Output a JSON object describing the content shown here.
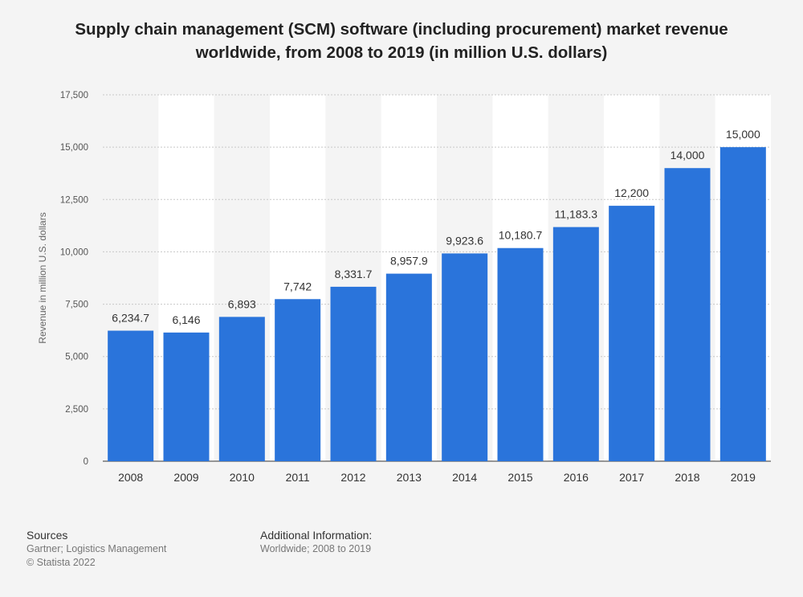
{
  "title": "Supply chain management (SCM) software (including procurement) market revenue worldwide, from 2008 to 2019 (in million U.S. dollars)",
  "footer": {
    "sources_heading": "Sources",
    "sources_text": "Gartner; Logistics Management",
    "copyright": "© Statista 2022",
    "additional_heading": "Additional Information:",
    "additional_text": "Worldwide; 2008 to 2019"
  },
  "colors": {
    "bar": "#2a74db",
    "background": "#f4f4f4",
    "stripe": "#ffffff",
    "grid": "#c8c8c8"
  },
  "chart_data": {
    "type": "bar",
    "categories": [
      "2008",
      "2009",
      "2010",
      "2011",
      "2012",
      "2013",
      "2014",
      "2015",
      "2016",
      "2017",
      "2018",
      "2019"
    ],
    "values": [
      6234.7,
      6146,
      6893,
      7742,
      8331.7,
      8957.9,
      9923.6,
      10180.7,
      11183.3,
      12200,
      14000,
      15000
    ],
    "value_labels": [
      "6,234.7",
      "6,146",
      "6,893",
      "7,742",
      "8,331.7",
      "8,957.9",
      "9,923.6",
      "10,180.7",
      "11,183.3",
      "12,200",
      "14,000",
      "15,000"
    ],
    "ylabel": "Revenue in million U.S. dollars",
    "xlabel": "",
    "ylim": [
      0,
      17500
    ],
    "yticks": [
      0,
      2500,
      5000,
      7500,
      10000,
      12500,
      15000,
      17500
    ],
    "ytick_labels": [
      "0",
      "2,500",
      "5,000",
      "7,500",
      "10,000",
      "12,500",
      "15,000",
      "17,500"
    ],
    "grid": true
  }
}
